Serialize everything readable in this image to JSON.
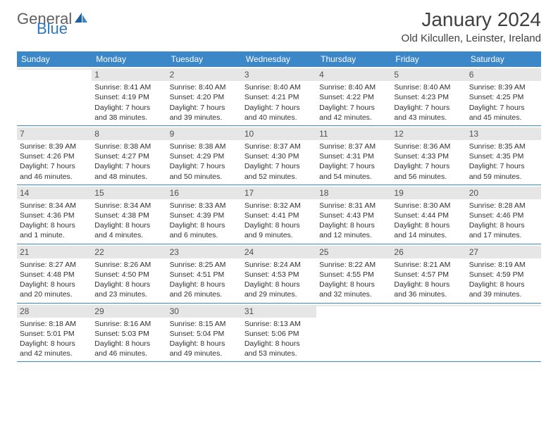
{
  "logo": {
    "general": "General",
    "blue": "Blue"
  },
  "title": "January 2024",
  "location": "Old Kilcullen, Leinster, Ireland",
  "colors": {
    "header_bg": "#3b87c8",
    "header_text": "#ffffff",
    "daynum_bg": "#e6e6e6",
    "border": "#3b87c8",
    "body_text": "#303030",
    "logo_gray": "#606060",
    "logo_blue": "#3077b9"
  },
  "weekdays": [
    "Sunday",
    "Monday",
    "Tuesday",
    "Wednesday",
    "Thursday",
    "Friday",
    "Saturday"
  ],
  "weeks": [
    [
      {
        "n": "",
        "sr": "",
        "ss": "",
        "d1": "",
        "d2": ""
      },
      {
        "n": "1",
        "sr": "Sunrise: 8:41 AM",
        "ss": "Sunset: 4:19 PM",
        "d1": "Daylight: 7 hours",
        "d2": "and 38 minutes."
      },
      {
        "n": "2",
        "sr": "Sunrise: 8:40 AM",
        "ss": "Sunset: 4:20 PM",
        "d1": "Daylight: 7 hours",
        "d2": "and 39 minutes."
      },
      {
        "n": "3",
        "sr": "Sunrise: 8:40 AM",
        "ss": "Sunset: 4:21 PM",
        "d1": "Daylight: 7 hours",
        "d2": "and 40 minutes."
      },
      {
        "n": "4",
        "sr": "Sunrise: 8:40 AM",
        "ss": "Sunset: 4:22 PM",
        "d1": "Daylight: 7 hours",
        "d2": "and 42 minutes."
      },
      {
        "n": "5",
        "sr": "Sunrise: 8:40 AM",
        "ss": "Sunset: 4:23 PM",
        "d1": "Daylight: 7 hours",
        "d2": "and 43 minutes."
      },
      {
        "n": "6",
        "sr": "Sunrise: 8:39 AM",
        "ss": "Sunset: 4:25 PM",
        "d1": "Daylight: 7 hours",
        "d2": "and 45 minutes."
      }
    ],
    [
      {
        "n": "7",
        "sr": "Sunrise: 8:39 AM",
        "ss": "Sunset: 4:26 PM",
        "d1": "Daylight: 7 hours",
        "d2": "and 46 minutes."
      },
      {
        "n": "8",
        "sr": "Sunrise: 8:38 AM",
        "ss": "Sunset: 4:27 PM",
        "d1": "Daylight: 7 hours",
        "d2": "and 48 minutes."
      },
      {
        "n": "9",
        "sr": "Sunrise: 8:38 AM",
        "ss": "Sunset: 4:29 PM",
        "d1": "Daylight: 7 hours",
        "d2": "and 50 minutes."
      },
      {
        "n": "10",
        "sr": "Sunrise: 8:37 AM",
        "ss": "Sunset: 4:30 PM",
        "d1": "Daylight: 7 hours",
        "d2": "and 52 minutes."
      },
      {
        "n": "11",
        "sr": "Sunrise: 8:37 AM",
        "ss": "Sunset: 4:31 PM",
        "d1": "Daylight: 7 hours",
        "d2": "and 54 minutes."
      },
      {
        "n": "12",
        "sr": "Sunrise: 8:36 AM",
        "ss": "Sunset: 4:33 PM",
        "d1": "Daylight: 7 hours",
        "d2": "and 56 minutes."
      },
      {
        "n": "13",
        "sr": "Sunrise: 8:35 AM",
        "ss": "Sunset: 4:35 PM",
        "d1": "Daylight: 7 hours",
        "d2": "and 59 minutes."
      }
    ],
    [
      {
        "n": "14",
        "sr": "Sunrise: 8:34 AM",
        "ss": "Sunset: 4:36 PM",
        "d1": "Daylight: 8 hours",
        "d2": "and 1 minute."
      },
      {
        "n": "15",
        "sr": "Sunrise: 8:34 AM",
        "ss": "Sunset: 4:38 PM",
        "d1": "Daylight: 8 hours",
        "d2": "and 4 minutes."
      },
      {
        "n": "16",
        "sr": "Sunrise: 8:33 AM",
        "ss": "Sunset: 4:39 PM",
        "d1": "Daylight: 8 hours",
        "d2": "and 6 minutes."
      },
      {
        "n": "17",
        "sr": "Sunrise: 8:32 AM",
        "ss": "Sunset: 4:41 PM",
        "d1": "Daylight: 8 hours",
        "d2": "and 9 minutes."
      },
      {
        "n": "18",
        "sr": "Sunrise: 8:31 AM",
        "ss": "Sunset: 4:43 PM",
        "d1": "Daylight: 8 hours",
        "d2": "and 12 minutes."
      },
      {
        "n": "19",
        "sr": "Sunrise: 8:30 AM",
        "ss": "Sunset: 4:44 PM",
        "d1": "Daylight: 8 hours",
        "d2": "and 14 minutes."
      },
      {
        "n": "20",
        "sr": "Sunrise: 8:28 AM",
        "ss": "Sunset: 4:46 PM",
        "d1": "Daylight: 8 hours",
        "d2": "and 17 minutes."
      }
    ],
    [
      {
        "n": "21",
        "sr": "Sunrise: 8:27 AM",
        "ss": "Sunset: 4:48 PM",
        "d1": "Daylight: 8 hours",
        "d2": "and 20 minutes."
      },
      {
        "n": "22",
        "sr": "Sunrise: 8:26 AM",
        "ss": "Sunset: 4:50 PM",
        "d1": "Daylight: 8 hours",
        "d2": "and 23 minutes."
      },
      {
        "n": "23",
        "sr": "Sunrise: 8:25 AM",
        "ss": "Sunset: 4:51 PM",
        "d1": "Daylight: 8 hours",
        "d2": "and 26 minutes."
      },
      {
        "n": "24",
        "sr": "Sunrise: 8:24 AM",
        "ss": "Sunset: 4:53 PM",
        "d1": "Daylight: 8 hours",
        "d2": "and 29 minutes."
      },
      {
        "n": "25",
        "sr": "Sunrise: 8:22 AM",
        "ss": "Sunset: 4:55 PM",
        "d1": "Daylight: 8 hours",
        "d2": "and 32 minutes."
      },
      {
        "n": "26",
        "sr": "Sunrise: 8:21 AM",
        "ss": "Sunset: 4:57 PM",
        "d1": "Daylight: 8 hours",
        "d2": "and 36 minutes."
      },
      {
        "n": "27",
        "sr": "Sunrise: 8:19 AM",
        "ss": "Sunset: 4:59 PM",
        "d1": "Daylight: 8 hours",
        "d2": "and 39 minutes."
      }
    ],
    [
      {
        "n": "28",
        "sr": "Sunrise: 8:18 AM",
        "ss": "Sunset: 5:01 PM",
        "d1": "Daylight: 8 hours",
        "d2": "and 42 minutes."
      },
      {
        "n": "29",
        "sr": "Sunrise: 8:16 AM",
        "ss": "Sunset: 5:03 PM",
        "d1": "Daylight: 8 hours",
        "d2": "and 46 minutes."
      },
      {
        "n": "30",
        "sr": "Sunrise: 8:15 AM",
        "ss": "Sunset: 5:04 PM",
        "d1": "Daylight: 8 hours",
        "d2": "and 49 minutes."
      },
      {
        "n": "31",
        "sr": "Sunrise: 8:13 AM",
        "ss": "Sunset: 5:06 PM",
        "d1": "Daylight: 8 hours",
        "d2": "and 53 minutes."
      },
      {
        "n": "",
        "sr": "",
        "ss": "",
        "d1": "",
        "d2": ""
      },
      {
        "n": "",
        "sr": "",
        "ss": "",
        "d1": "",
        "d2": ""
      },
      {
        "n": "",
        "sr": "",
        "ss": "",
        "d1": "",
        "d2": ""
      }
    ]
  ]
}
